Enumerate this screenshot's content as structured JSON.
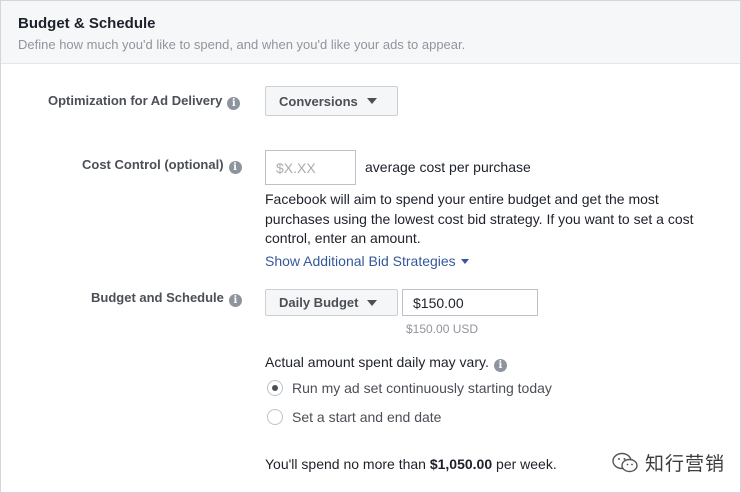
{
  "header": {
    "title": "Budget & Schedule",
    "subtitle": "Define how much you'd like to spend, and when you'd like your ads to appear."
  },
  "optimization": {
    "label": "Optimization for Ad Delivery",
    "value": "Conversions"
  },
  "cost_control": {
    "label": "Cost Control (optional)",
    "placeholder": "$X.XX",
    "suffix": "average cost per purchase",
    "description": "Facebook will aim to spend your entire budget and get the most purchases using the lowest cost bid strategy. If you want to set a cost control, enter an amount.",
    "link": "Show Additional Bid Strategies"
  },
  "budget": {
    "label": "Budget and Schedule",
    "type": "Daily Budget",
    "amount": "$150.00",
    "amount_usd": "$150.00 USD",
    "note": "Actual amount spent daily may vary.",
    "options": [
      {
        "label": "Run my ad set continuously starting today",
        "checked": true
      },
      {
        "label": "Set a start and end date",
        "checked": false
      }
    ],
    "spend_prefix": "You'll spend no more than",
    "spend_amount": "$1,050.00",
    "spend_suffix": "per week."
  },
  "icons": {
    "info": "info-icon",
    "dropdown": "chevron-down-icon",
    "radio": "radio-icon"
  },
  "watermark": {
    "text": "知行营销",
    "icon": "wechat-icon"
  }
}
